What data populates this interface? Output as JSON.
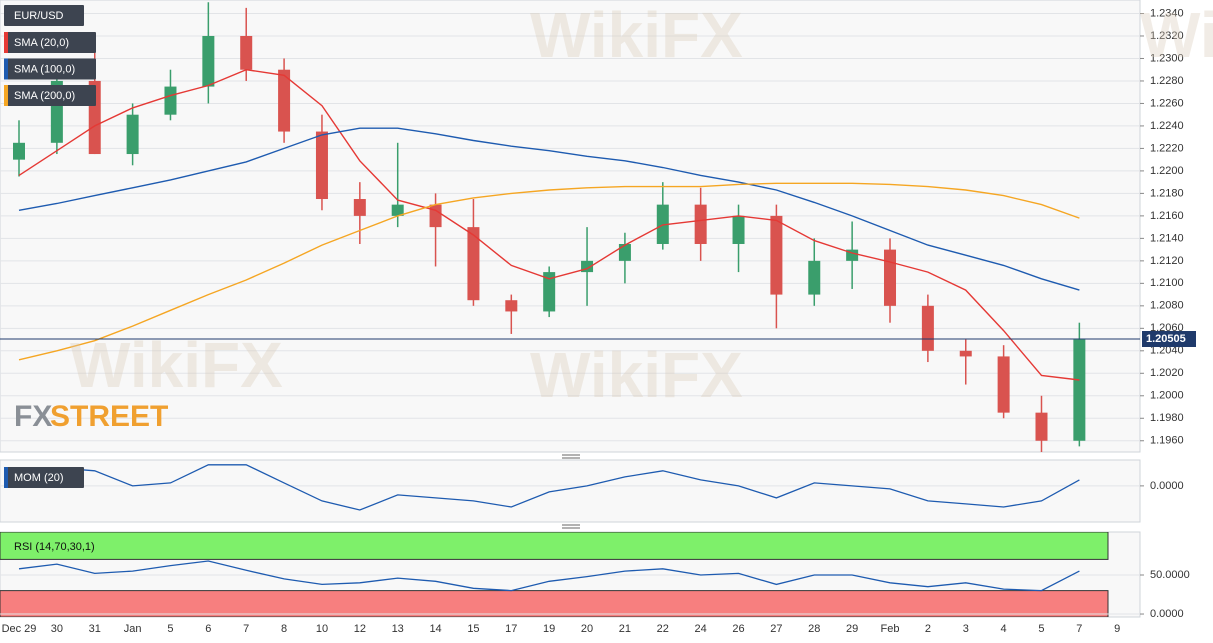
{
  "chart_data": [
    {
      "type": "candlestick",
      "title": "EUR/USD",
      "categories": [
        "Dec 29",
        "30",
        "31",
        "Jan",
        "5",
        "6",
        "7",
        "8",
        "10",
        "12",
        "13",
        "14",
        "15",
        "17",
        "19",
        "20",
        "21",
        "22",
        "24",
        "26",
        "27",
        "28",
        "29",
        "Feb",
        "2",
        "3",
        "4",
        "5",
        "7",
        "9"
      ],
      "open": [
        1.221,
        1.2225,
        1.228,
        1.2215,
        1.225,
        1.2275,
        1.232,
        1.229,
        1.2235,
        1.2175,
        1.216,
        1.217,
        1.215,
        1.2085,
        1.2075,
        1.211,
        1.212,
        1.2135,
        1.217,
        1.2135,
        1.216,
        1.209,
        1.212,
        1.213,
        1.208,
        1.204,
        1.2035,
        1.1985,
        1.196,
        null
      ],
      "high": [
        1.2245,
        1.229,
        1.231,
        1.226,
        1.229,
        1.235,
        1.2345,
        1.23,
        1.225,
        1.219,
        1.2225,
        1.218,
        1.2175,
        1.209,
        1.2115,
        1.215,
        1.2145,
        1.219,
        1.2185,
        1.217,
        1.217,
        1.214,
        1.2155,
        1.214,
        1.209,
        1.205,
        1.2045,
        1.2,
        1.2065,
        null
      ],
      "low": [
        1.2195,
        1.2215,
        1.2215,
        1.2205,
        1.2245,
        1.226,
        1.228,
        1.2225,
        1.2165,
        1.2135,
        1.215,
        1.2115,
        1.208,
        1.2055,
        1.207,
        1.208,
        1.21,
        1.213,
        1.212,
        1.211,
        1.206,
        1.208,
        1.2095,
        1.2065,
        1.203,
        1.201,
        1.198,
        1.195,
        1.1955,
        null
      ],
      "close": [
        1.2225,
        1.228,
        1.2215,
        1.225,
        1.2275,
        1.232,
        1.229,
        1.2235,
        1.2175,
        1.216,
        1.217,
        1.215,
        1.2085,
        1.2075,
        1.211,
        1.212,
        1.2135,
        1.217,
        1.2135,
        1.216,
        1.209,
        1.212,
        1.213,
        1.208,
        1.204,
        1.2035,
        1.1985,
        1.196,
        1.205,
        null
      ],
      "up_color": "#3a9e6c",
      "down_color": "#d9534f",
      "series": [
        {
          "name": "SMA (20,0)",
          "color": "#e53935",
          "values": [
            1.2196,
            1.2218,
            1.224,
            1.2256,
            1.2267,
            1.2276,
            1.229,
            1.2285,
            1.2258,
            1.2209,
            1.2174,
            1.2165,
            1.2143,
            1.2116,
            1.2104,
            1.2113,
            1.2134,
            1.2152,
            1.2156,
            1.216,
            1.2156,
            1.2138,
            1.2127,
            1.2119,
            1.211,
            1.2094,
            1.2058,
            1.2018,
            1.2014,
            null
          ]
        },
        {
          "name": "SMA (100,0)",
          "color": "#1e5bb0",
          "values": [
            1.2165,
            1.2171,
            1.2178,
            1.2185,
            1.2192,
            1.22,
            1.2208,
            1.222,
            1.2232,
            1.2238,
            1.2238,
            1.2233,
            1.2227,
            1.2222,
            1.2218,
            1.2213,
            1.2209,
            1.2203,
            1.2196,
            1.219,
            1.2183,
            1.2172,
            1.216,
            1.2147,
            1.2134,
            1.2125,
            1.2116,
            1.2104,
            1.2094,
            null
          ]
        },
        {
          "name": "SMA (200,0)",
          "color": "#f5a623",
          "values": [
            1.2032,
            1.204,
            1.2049,
            1.2062,
            1.2076,
            1.209,
            1.2103,
            1.2118,
            1.2134,
            1.2147,
            1.216,
            1.217,
            1.2176,
            1.218,
            1.2183,
            1.2185,
            1.2186,
            1.2186,
            1.2186,
            1.2188,
            1.2189,
            1.2189,
            1.2189,
            1.2188,
            1.2186,
            1.2183,
            1.2178,
            1.217,
            1.2158,
            null
          ]
        }
      ],
      "last_price": 1.20505,
      "ylim": [
        1.195,
        1.2352
      ],
      "yticks": [
        {
          "value": 1.196,
          "label": "1.1960"
        },
        {
          "value": 1.198,
          "label": "1.1980"
        },
        {
          "value": 1.2,
          "label": "1.2000"
        },
        {
          "value": 1.202,
          "label": "1.2020"
        },
        {
          "value": 1.204,
          "label": "1.2040"
        },
        {
          "value": 1.206,
          "label": "1.2060"
        },
        {
          "value": 1.208,
          "label": "1.2080"
        },
        {
          "value": 1.21,
          "label": "1.2100"
        },
        {
          "value": 1.212,
          "label": "1.2120"
        },
        {
          "value": 1.214,
          "label": "1.2140"
        },
        {
          "value": 1.216,
          "label": "1.2160"
        },
        {
          "value": 1.218,
          "label": "1.2180"
        },
        {
          "value": 1.22,
          "label": "1.2200"
        },
        {
          "value": 1.222,
          "label": "1.2220"
        },
        {
          "value": 1.224,
          "label": "1.2240"
        },
        {
          "value": 1.226,
          "label": "1.2260"
        },
        {
          "value": 1.228,
          "label": "1.2280"
        },
        {
          "value": 1.23,
          "label": "1.2300"
        },
        {
          "value": 1.232,
          "label": "1.2320"
        },
        {
          "value": 1.234,
          "label": "1.2340"
        }
      ],
      "grid": true,
      "logo": [
        "FX",
        "STREET"
      ],
      "watermark": "WikiFX"
    },
    {
      "type": "line",
      "name": "MOM (20)",
      "color": "#1e5bb0",
      "values": [
        0.002,
        0.003,
        0.0025,
        0.0,
        0.0005,
        0.0035,
        0.0035,
        0.0005,
        -0.0025,
        -0.004,
        -0.0015,
        -0.002,
        -0.0025,
        -0.0035,
        -0.001,
        0.0,
        0.0015,
        0.0025,
        0.001,
        0.0,
        -0.002,
        0.0005,
        0.0,
        -0.0005,
        -0.0025,
        -0.003,
        -0.0035,
        -0.0025,
        0.001,
        null
      ],
      "ylim": [
        -0.006,
        0.0043
      ],
      "yticks": [
        {
          "value": 0,
          "label": "0.0000"
        }
      ],
      "grid": true
    },
    {
      "type": "line",
      "name": "RSI (14,70,30,1)",
      "color": "#1e5bb0",
      "values": [
        58,
        64,
        52,
        55,
        62,
        68,
        56,
        45,
        38,
        40,
        46,
        42,
        33,
        30,
        42,
        48,
        55,
        58,
        50,
        52,
        38,
        50,
        50,
        40,
        35,
        40,
        32,
        30,
        55,
        null
      ],
      "overbought": 70,
      "oversold": 30,
      "ylim": [
        -3.8,
        105.1
      ],
      "yticks": [
        {
          "value": 0,
          "label": "0.0000"
        },
        {
          "value": 50,
          "label": "50.0000"
        }
      ],
      "grid": true
    }
  ]
}
